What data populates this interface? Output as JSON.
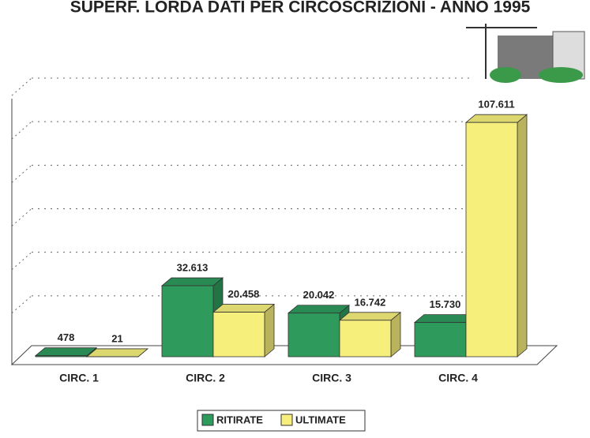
{
  "chart_data": {
    "type": "bar3d",
    "title": "SUPERF. LORDA DATI PER CIRCOSCRIZIONI - ANNO 1995",
    "categories": [
      "CIRC. 1",
      "CIRC. 2",
      "CIRC. 3",
      "CIRC. 4"
    ],
    "series": [
      {
        "name": "RITIRATE",
        "color": "#2e9a5c",
        "values": [
          478,
          32613,
          20042,
          15730
        ],
        "value_labels": [
          "478",
          "32.613",
          "20.042",
          "15.730"
        ]
      },
      {
        "name": "ULTIMATE",
        "color": "#f6ef7c",
        "values": [
          21,
          20458,
          16742,
          107611
        ],
        "value_labels": [
          "21",
          "20.458",
          "16.742",
          "107.611"
        ]
      }
    ],
    "ylim": [
      0,
      120000
    ],
    "yticks": [
      0,
      20000,
      40000,
      60000,
      80000,
      100000,
      120000
    ],
    "grid": true,
    "legend": "bottom"
  }
}
